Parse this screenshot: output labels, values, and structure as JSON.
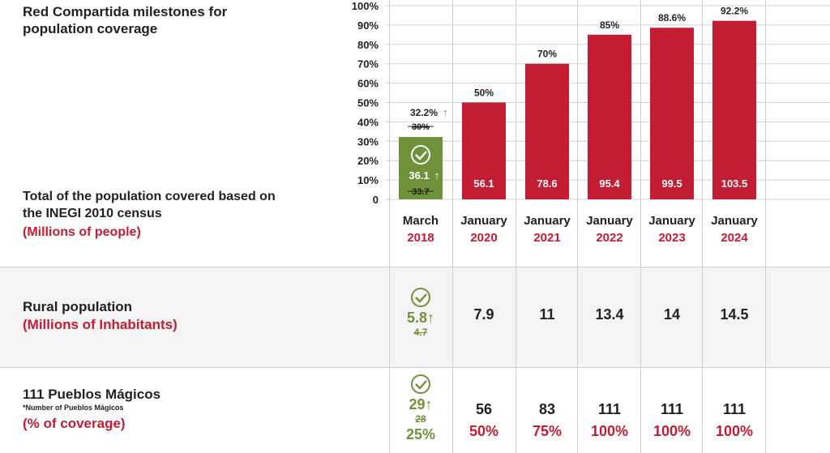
{
  "title": "Red Compartida milestones for population coverage",
  "total_label": "Total of the population covered based on the INEGI 2010 census",
  "total_unit": "(Millions of people)",
  "columns": [
    {
      "month": "March",
      "year": "2018"
    },
    {
      "month": "January",
      "year": "2020"
    },
    {
      "month": "January",
      "year": "2021"
    },
    {
      "month": "January",
      "year": "2022"
    },
    {
      "month": "January",
      "year": "2023"
    },
    {
      "month": "January",
      "year": "2024"
    }
  ],
  "chart_data": {
    "type": "bar",
    "title": "Red Compartida milestones for population coverage",
    "categories": [
      "March 2018",
      "January 2020",
      "January 2021",
      "January 2022",
      "January 2023",
      "January 2024"
    ],
    "series": [
      {
        "values": [
          32.2,
          50,
          70,
          85,
          88.6,
          92.2
        ]
      }
    ],
    "value_labels": [
      "32.2%",
      "50%",
      "70%",
      "85%",
      "88.6%",
      "92.2%"
    ],
    "population_millions": [
      "36.1",
      "56.1",
      "78.6",
      "95.4",
      "99.5",
      "103.5"
    ],
    "first_target_pct": "30%",
    "first_target_population": "33.7",
    "yticks": [
      "100%",
      "90%",
      "80%",
      "70%",
      "60%",
      "50%",
      "40%",
      "30%",
      "20%",
      "10%",
      "0"
    ],
    "ylim": [
      0,
      100
    ],
    "grid": true,
    "colors": {
      "achieved_first": "#6e913a",
      "bars": "#c21d32"
    }
  },
  "rural": {
    "label": "Rural population",
    "unit": "(Millions of Inhabitants)",
    "first_value": "5.8",
    "first_target": "4.7",
    "values": [
      "7.9",
      "11",
      "13.4",
      "14",
      "14.5"
    ]
  },
  "pueblos": {
    "label": "111 Pueblos Mágicos",
    "note": "*Number of Pueblos Mágicos",
    "unit": "(% of coverage)",
    "first_value": "29",
    "first_target": "28",
    "first_pct": "25%",
    "values": [
      "56",
      "83",
      "111",
      "111",
      "111"
    ],
    "pcts": [
      "50%",
      "75%",
      "100%",
      "100%",
      "100%"
    ]
  },
  "arrow_glyph": "↑"
}
